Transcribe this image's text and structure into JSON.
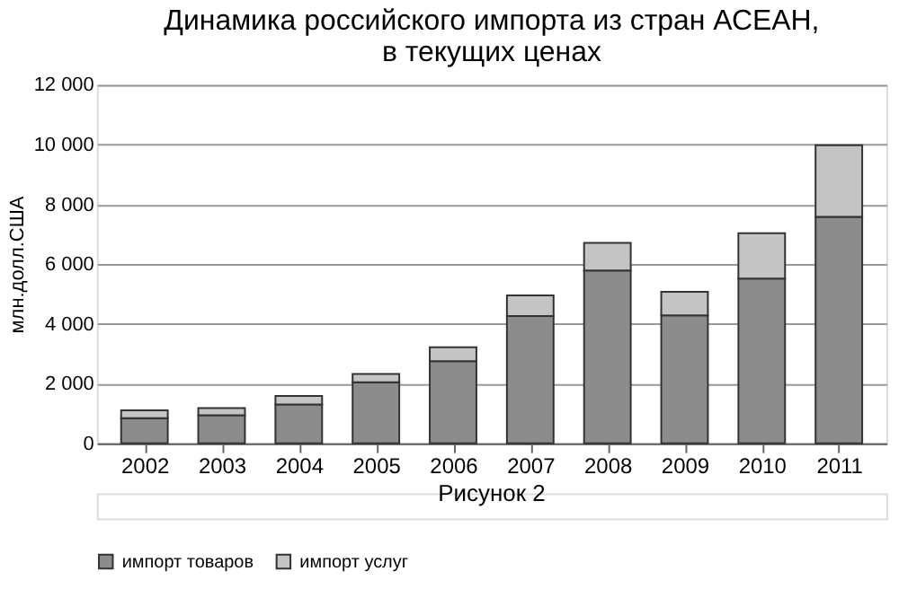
{
  "chart_data": {
    "type": "bar",
    "title": [
      "Динамика российского импорта из стран АСЕАН,",
      "в текущих ценах"
    ],
    "ylabel": "млн.долл.США",
    "categories": [
      "2002",
      "2003",
      "2004",
      "2005",
      "2006",
      "2007",
      "2008",
      "2009",
      "2010",
      "2011"
    ],
    "stacked": true,
    "series": [
      {
        "name": "импорт товаров",
        "color": "#8c8c8c",
        "values": [
          840,
          940,
          1300,
          2040,
          2750,
          4260,
          5780,
          4280,
          5510,
          7580
        ]
      },
      {
        "name": "импорт услуг",
        "color": "#c4c4c4",
        "values": [
          260,
          240,
          280,
          280,
          460,
          690,
          930,
          790,
          1520,
          2400
        ]
      }
    ],
    "ylim": [
      0,
      12000
    ],
    "yticks": [
      {
        "value": 0,
        "label": "0"
      },
      {
        "value": 2000,
        "label": "2 000"
      },
      {
        "value": 4000,
        "label": "4 000"
      },
      {
        "value": 6000,
        "label": "6 000"
      },
      {
        "value": 8000,
        "label": "8 000"
      },
      {
        "value": 10000,
        "label": "10 000"
      },
      {
        "value": 12000,
        "label": "12 000"
      }
    ],
    "grid": "y",
    "legend": "bottom",
    "annotations": [
      "Рисунок 2"
    ]
  }
}
